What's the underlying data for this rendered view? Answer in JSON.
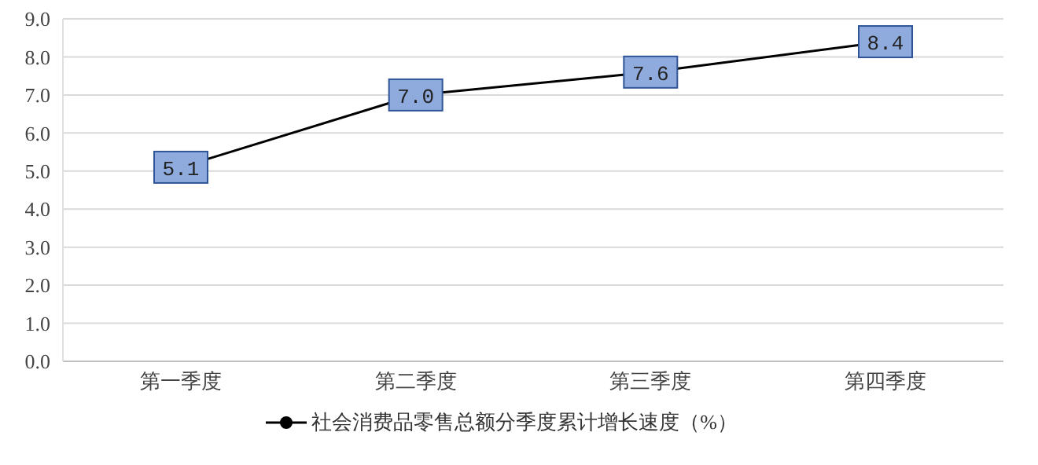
{
  "chart_data": {
    "type": "line",
    "categories": [
      "第一季度",
      "第二季度",
      "第三季度",
      "第四季度"
    ],
    "series": [
      {
        "name": "社会消费品零售总额分季度累计增长速度（%）",
        "color": "#000000",
        "values": [
          5.1,
          7.0,
          7.6,
          8.4
        ],
        "value_labels": [
          "5.1",
          "7.0",
          "7.6",
          "8.4"
        ]
      }
    ],
    "ylim": [
      0,
      9
    ],
    "yticks": [
      {
        "value": 0,
        "label": "0.0"
      },
      {
        "value": 1,
        "label": "1.0"
      },
      {
        "value": 2,
        "label": "2.0"
      },
      {
        "value": 3,
        "label": "3.0"
      },
      {
        "value": 4,
        "label": "4.0"
      },
      {
        "value": 5,
        "label": "5.0"
      },
      {
        "value": 6,
        "label": "6.0"
      },
      {
        "value": 7,
        "label": "7.0"
      },
      {
        "value": 8,
        "label": "8.0"
      },
      {
        "value": 9,
        "label": "9.0"
      }
    ],
    "grid": "y",
    "legend": "bottom",
    "marker": "circle",
    "line_style": "solid"
  }
}
